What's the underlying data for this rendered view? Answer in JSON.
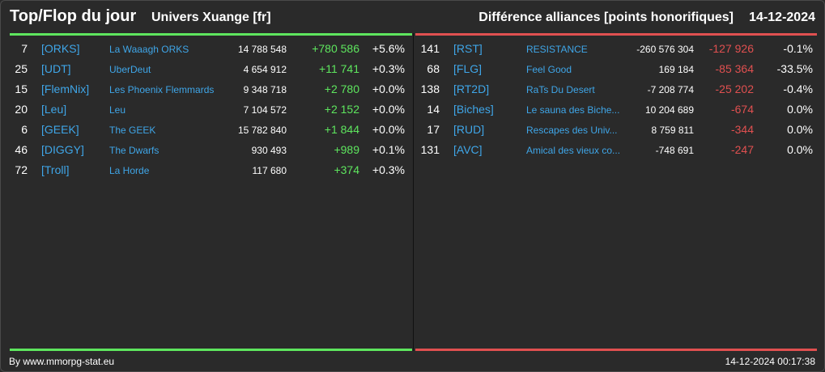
{
  "header": {
    "title": "Top/Flop du jour",
    "subtitle": "Univers Xuange [fr]",
    "diff_label": "Différence alliances [points honorifiques]",
    "date": "14-12-2024"
  },
  "colors": {
    "positive": "#5ee65e",
    "negative": "#e05050",
    "link": "#3fa6e8",
    "background": "#2a2a2a"
  },
  "top": [
    {
      "rank": "7",
      "tag": "[ORKS]",
      "name": "La Waaagh ORKS",
      "points": "14 788 548",
      "diff": "+780 586",
      "pct": "+5.6%"
    },
    {
      "rank": "25",
      "tag": "[UDT]",
      "name": "UberDeut",
      "points": "4 654 912",
      "diff": "+11 741",
      "pct": "+0.3%"
    },
    {
      "rank": "15",
      "tag": "[FlemNix]",
      "name": "Les Phoenix Flemmards",
      "points": "9 348 718",
      "diff": "+2 780",
      "pct": "+0.0%"
    },
    {
      "rank": "20",
      "tag": "[Leu]",
      "name": "Leu",
      "points": "7 104 572",
      "diff": "+2 152",
      "pct": "+0.0%"
    },
    {
      "rank": "6",
      "tag": "[GEEK]",
      "name": "The GEEK",
      "points": "15 782 840",
      "diff": "+1 844",
      "pct": "+0.0%"
    },
    {
      "rank": "46",
      "tag": "[DIGGY]",
      "name": "The Dwarfs",
      "points": "930 493",
      "diff": "+989",
      "pct": "+0.1%"
    },
    {
      "rank": "72",
      "tag": "[Troll]",
      "name": "La Horde",
      "points": "117 680",
      "diff": "+374",
      "pct": "+0.3%"
    }
  ],
  "flop": [
    {
      "rank": "141",
      "tag": "[RST]",
      "name": "RESISTANCE",
      "points": "-260 576 304",
      "diff": "-127 926",
      "pct": "-0.1%"
    },
    {
      "rank": "68",
      "tag": "[FLG]",
      "name": "Feel Good",
      "points": "169 184",
      "diff": "-85 364",
      "pct": "-33.5%"
    },
    {
      "rank": "138",
      "tag": "[RT2D]",
      "name": "RaTs Du Desert",
      "points": "-7 208 774",
      "diff": "-25 202",
      "pct": "-0.4%"
    },
    {
      "rank": "14",
      "tag": "[Biches]",
      "name": "Le sauna des Biche...",
      "points": "10 204 689",
      "diff": "-674",
      "pct": "0.0%"
    },
    {
      "rank": "17",
      "tag": "[RUD]",
      "name": "Rescapes des Univ...",
      "points": "8 759 811",
      "diff": "-344",
      "pct": "0.0%"
    },
    {
      "rank": "131",
      "tag": "[AVC]",
      "name": "Amical des vieux co...",
      "points": "-748 691",
      "diff": "-247",
      "pct": "0.0%"
    }
  ],
  "footer": {
    "credit": "By www.mmorpg-stat.eu",
    "timestamp": "14-12-2024 00:17:38"
  }
}
